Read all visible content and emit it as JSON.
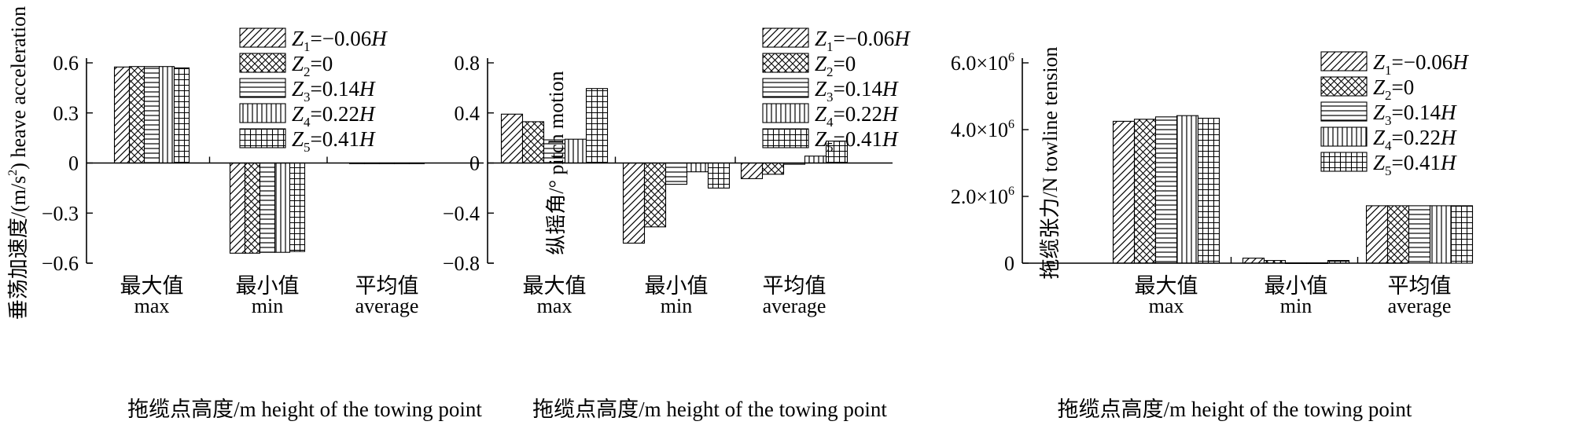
{
  "legend": [
    {
      "sym": "Z",
      "sub": "1",
      "rest": "=−0.06",
      "var": "H",
      "pattern": "pat-diag"
    },
    {
      "sym": "Z",
      "sub": "2",
      "rest": "=0",
      "var": "",
      "pattern": "pat-cross"
    },
    {
      "sym": "Z",
      "sub": "3",
      "rest": "=0.14",
      "var": "H",
      "pattern": "pat-horiz"
    },
    {
      "sym": "Z",
      "sub": "4",
      "rest": "=0.22",
      "var": "H",
      "pattern": "pat-vert"
    },
    {
      "sym": "Z",
      "sub": "5",
      "rest": "=0.41",
      "var": "H",
      "pattern": "pat-grid"
    }
  ],
  "chart_data": [
    {
      "type": "bar",
      "categories": [
        {
          "zh": "最大值",
          "en": "max"
        },
        {
          "zh": "最小值",
          "en": "min"
        },
        {
          "zh": "平均值",
          "en": "average"
        }
      ],
      "series": [
        {
          "values": [
            0.575,
            -0.54,
            0.0
          ]
        },
        {
          "values": [
            0.578,
            -0.54,
            0.0
          ]
        },
        {
          "values": [
            0.578,
            -0.535,
            0.0
          ]
        },
        {
          "values": [
            0.578,
            -0.535,
            0.0
          ]
        },
        {
          "values": [
            0.57,
            -0.53,
            0.0
          ]
        }
      ],
      "yticks": [
        {
          "v": 0.6,
          "label": "0.6"
        },
        {
          "v": 0.3,
          "label": "0.3"
        },
        {
          "v": 0,
          "label": "0"
        },
        {
          "v": -0.3,
          "label": "−0.3"
        },
        {
          "v": -0.6,
          "label": "−0.6"
        }
      ],
      "ylim": [
        -0.6,
        0.6
      ],
      "xlabel": "拖缆点高度/m height of the towing point",
      "ylabel": {
        "prefix": "垂荡加速度/(m/s",
        "sup": "2",
        "suffix": ") heave acceleration"
      }
    },
    {
      "type": "bar",
      "categories": [
        {
          "zh": "最大值",
          "en": "max"
        },
        {
          "zh": "最小值",
          "en": "min"
        },
        {
          "zh": "平均值",
          "en": "average"
        }
      ],
      "series": [
        {
          "values": [
            0.39,
            -0.64,
            -0.125
          ]
        },
        {
          "values": [
            0.33,
            -0.51,
            -0.09
          ]
        },
        {
          "values": [
            0.185,
            -0.17,
            -0.01
          ]
        },
        {
          "values": [
            0.19,
            -0.07,
            0.055
          ]
        },
        {
          "values": [
            0.595,
            -0.2,
            0.175
          ]
        }
      ],
      "yticks": [
        {
          "v": 0.8,
          "label": "0.8"
        },
        {
          "v": 0.4,
          "label": "0.4"
        },
        {
          "v": 0,
          "label": "0"
        },
        {
          "v": -0.4,
          "label": "−0.4"
        },
        {
          "v": -0.8,
          "label": "−0.8"
        }
      ],
      "ylim": [
        -0.8,
        0.8
      ],
      "xlabel": "拖缆点高度/m height of the towing point",
      "ylabel": {
        "prefix": "纵摇角/° pitch motion",
        "sup": "",
        "suffix": ""
      }
    },
    {
      "type": "bar",
      "categories": [
        {
          "zh": "最大值",
          "en": "max"
        },
        {
          "zh": "最小值",
          "en": "min"
        },
        {
          "zh": "平均值",
          "en": "average"
        }
      ],
      "series": [
        {
          "values": [
            4250000,
            150000,
            1720000
          ]
        },
        {
          "values": [
            4310000,
            80000,
            1720000
          ]
        },
        {
          "values": [
            4380000,
            10000,
            1720000
          ]
        },
        {
          "values": [
            4420000,
            10000,
            1720000
          ]
        },
        {
          "values": [
            4340000,
            80000,
            1720000
          ]
        }
      ],
      "yticks": [
        {
          "v": 6000000,
          "label": "6.0×10",
          "sup": "6"
        },
        {
          "v": 4000000,
          "label": "4.0×10",
          "sup": "6"
        },
        {
          "v": 2000000,
          "label": "2.0×10",
          "sup": "6"
        },
        {
          "v": 0,
          "label": "0",
          "sup": ""
        }
      ],
      "ylim": [
        0,
        6000000
      ],
      "xlabel": "拖缆点高度/m height of the towing point",
      "ylabel": {
        "prefix": "拖缆张力/N towline tension",
        "sup": "",
        "suffix": ""
      }
    }
  ]
}
